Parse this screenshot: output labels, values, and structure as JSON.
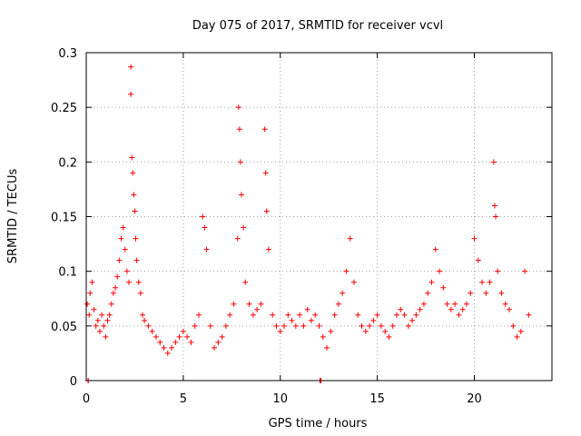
{
  "chart_data": {
    "type": "scatter",
    "title": "Day 075 of 2017, SRMTID for receiver vcvl",
    "xlabel": "GPS time / hours",
    "ylabel": "SRMTID / TECUs",
    "xlim": [
      0,
      24
    ],
    "ylim": [
      0,
      0.3
    ],
    "xticks": [
      0,
      5,
      10,
      15,
      20
    ],
    "xtick_labels": [
      "0",
      "5",
      "10",
      "15",
      "20"
    ],
    "yticks": [
      0,
      0.05,
      0.1,
      0.15,
      0.2,
      0.25,
      0.3
    ],
    "ytick_labels": [
      "0",
      "0.05",
      "0.1",
      "0.15",
      "0.2",
      "0.25",
      "0.3"
    ],
    "grid": true,
    "marker": "+",
    "color": "#ff0000",
    "series": [
      {
        "name": "SRMTID",
        "x": [
          0.05,
          0.1,
          0.15,
          0.2,
          0.3,
          0.4,
          0.5,
          0.6,
          0.7,
          0.8,
          0.9,
          1.0,
          1.1,
          1.2,
          1.3,
          1.4,
          1.5,
          1.6,
          1.7,
          1.8,
          1.9,
          2.0,
          2.1,
          2.2,
          2.3,
          2.3,
          2.35,
          2.4,
          2.45,
          2.5,
          2.55,
          2.6,
          2.7,
          2.8,
          2.9,
          3.0,
          3.2,
          3.4,
          3.6,
          3.8,
          4.0,
          4.2,
          4.4,
          4.6,
          4.8,
          5.0,
          5.2,
          5.4,
          5.6,
          5.8,
          6.0,
          6.1,
          6.2,
          6.4,
          6.6,
          6.8,
          7.0,
          7.2,
          7.4,
          7.6,
          7.8,
          7.85,
          7.9,
          7.95,
          8.0,
          8.1,
          8.2,
          8.4,
          8.6,
          8.8,
          9.0,
          9.2,
          9.25,
          9.3,
          9.4,
          9.6,
          9.8,
          10.0,
          10.2,
          10.4,
          10.6,
          10.8,
          11.0,
          11.2,
          11.4,
          11.6,
          11.8,
          12.0,
          12.2,
          12.4,
          12.6,
          12.8,
          13.0,
          13.2,
          13.4,
          13.6,
          13.8,
          14.0,
          14.2,
          14.4,
          14.6,
          14.8,
          15.0,
          15.2,
          15.4,
          15.6,
          15.8,
          16.0,
          16.2,
          16.4,
          16.6,
          16.8,
          17.0,
          17.2,
          17.4,
          17.6,
          17.8,
          18.0,
          18.2,
          18.4,
          18.6,
          18.8,
          19.0,
          19.2,
          19.4,
          19.6,
          19.8,
          20.0,
          20.2,
          20.4,
          20.6,
          20.8,
          21.0,
          21.05,
          21.1,
          21.2,
          21.4,
          21.6,
          21.8,
          22.0,
          22.2,
          22.4,
          22.6,
          22.8,
          0.1,
          12.05,
          12.1
        ],
        "y": [
          0.07,
          0.0,
          0.06,
          0.08,
          0.09,
          0.065,
          0.05,
          0.055,
          0.045,
          0.06,
          0.05,
          0.04,
          0.055,
          0.06,
          0.07,
          0.08,
          0.085,
          0.095,
          0.11,
          0.13,
          0.14,
          0.12,
          0.1,
          0.09,
          0.287,
          0.262,
          0.204,
          0.19,
          0.17,
          0.155,
          0.13,
          0.11,
          0.09,
          0.08,
          0.06,
          0.055,
          0.05,
          0.045,
          0.04,
          0.035,
          0.03,
          0.025,
          0.03,
          0.035,
          0.04,
          0.045,
          0.04,
          0.035,
          0.05,
          0.06,
          0.15,
          0.14,
          0.12,
          0.05,
          0.03,
          0.035,
          0.04,
          0.05,
          0.06,
          0.07,
          0.13,
          0.25,
          0.23,
          0.2,
          0.17,
          0.14,
          0.09,
          0.07,
          0.06,
          0.065,
          0.07,
          0.23,
          0.19,
          0.155,
          0.12,
          0.06,
          0.05,
          0.045,
          0.05,
          0.06,
          0.055,
          0.05,
          0.06,
          0.05,
          0.065,
          0.055,
          0.06,
          0.05,
          0.04,
          0.03,
          0.045,
          0.06,
          0.07,
          0.08,
          0.1,
          0.13,
          0.09,
          0.06,
          0.05,
          0.045,
          0.05,
          0.055,
          0.06,
          0.05,
          0.045,
          0.04,
          0.05,
          0.06,
          0.065,
          0.06,
          0.05,
          0.055,
          0.06,
          0.065,
          0.07,
          0.08,
          0.09,
          0.12,
          0.1,
          0.085,
          0.07,
          0.065,
          0.07,
          0.06,
          0.065,
          0.07,
          0.08,
          0.13,
          0.11,
          0.09,
          0.08,
          0.09,
          0.2,
          0.16,
          0.15,
          0.1,
          0.08,
          0.07,
          0.065,
          0.05,
          0.04,
          0.045,
          0.1,
          0.06,
          0.0,
          0.0,
          0.0
        ]
      }
    ]
  }
}
